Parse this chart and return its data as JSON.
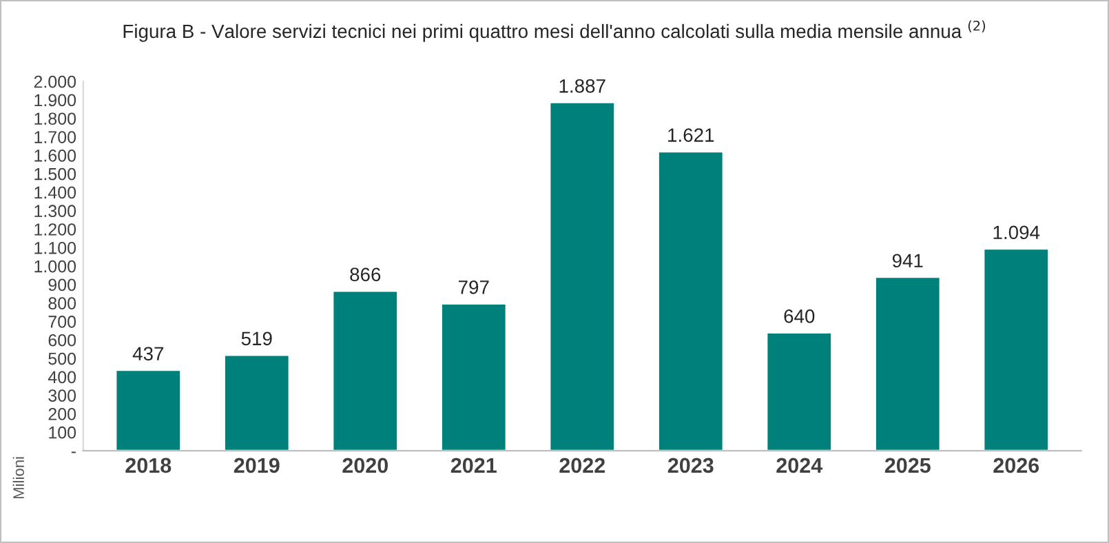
{
  "chart_data": {
    "type": "bar",
    "title": "Figura B - Valore servizi tecnici nei primi quattro mesi dell'anno calcolati sulla media mensile annua $^{(2)}$",
    "ylabel": "Milioni",
    "categories": [
      "2018",
      "2019",
      "2020",
      "2021",
      "2022",
      "2023",
      "2024",
      "2025",
      "2026"
    ],
    "values": [
      437,
      519,
      866,
      797,
      1887,
      1621,
      640,
      941,
      1094
    ],
    "value_labels": [
      "437",
      "519",
      "866",
      "797",
      "1.887",
      "1.621",
      "640",
      "941",
      "1.094"
    ],
    "colors": [
      "#00807a",
      "#00807a",
      "#00807a",
      "#00807a",
      "#00807a",
      "#00807a",
      "#00807a",
      "#00807a",
      "#00807a"
    ],
    "ylim": [
      0,
      2000
    ],
    "yticks": [
      {
        "value": 0,
        "label": "-"
      },
      100,
      200,
      300,
      400,
      500,
      600,
      700,
      800,
      900,
      {
        "value": 1000,
        "label": "1.000"
      },
      {
        "value": 1100,
        "label": "1.100"
      },
      {
        "value": 1200,
        "label": "1.200"
      },
      {
        "value": 1300,
        "label": "1.300"
      },
      {
        "value": 1400,
        "label": "1.400"
      },
      {
        "value": 1500,
        "label": "1.500"
      },
      {
        "value": 1600,
        "label": "1.600"
      },
      {
        "value": 1700,
        "label": "1.700"
      },
      {
        "value": 1800,
        "label": "1.800"
      },
      {
        "value": 1900,
        "label": "1.900"
      },
      {
        "value": 2000,
        "label": "2.000"
      }
    ],
    "grid": false,
    "legend": false
  }
}
